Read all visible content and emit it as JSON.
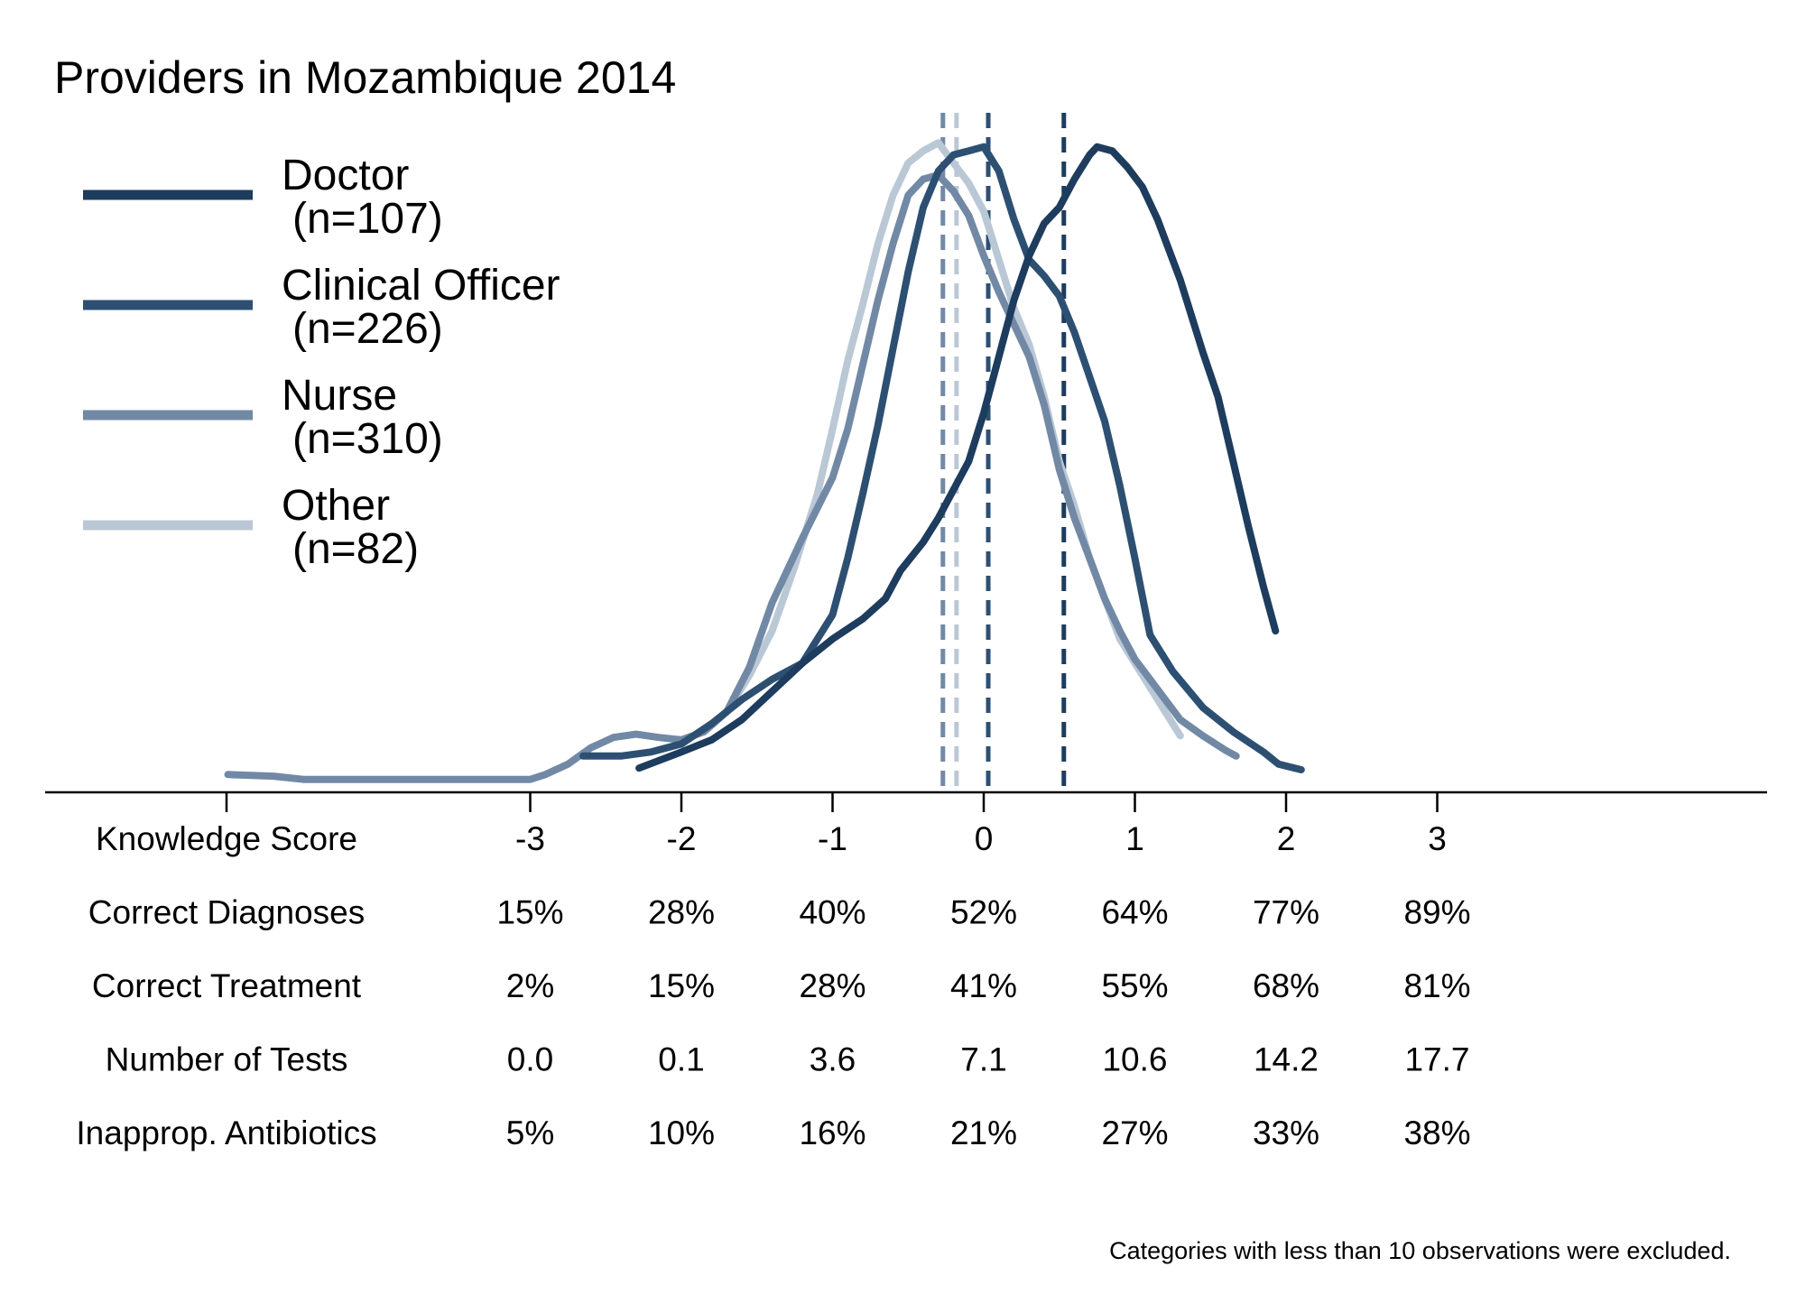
{
  "chart_data": {
    "type": "line",
    "title": "Providers in Mozambique 2014",
    "xlabel": "Knowledge Score",
    "xlim": [
      -5,
      5.3
    ],
    "x_ticks": [
      "-3",
      "-2",
      "-1",
      "0",
      "1",
      "2",
      "3"
    ],
    "x_tick_values": [
      -3,
      -2,
      -1,
      0,
      1,
      2,
      3
    ],
    "ylim": [
      0,
      0.85
    ],
    "grid": false,
    "legend": {
      "placement": "top-left"
    },
    "series": [
      {
        "name": "Doctor",
        "name_line2": "(n=107)",
        "color": "#1d3c5e",
        "mean": 0.53,
        "points": [
          [
            -2.28,
            0.03
          ],
          [
            -2.0,
            0.05
          ],
          [
            -1.8,
            0.065
          ],
          [
            -1.6,
            0.09
          ],
          [
            -1.4,
            0.125
          ],
          [
            -1.2,
            0.16
          ],
          [
            -1.0,
            0.19
          ],
          [
            -0.8,
            0.215
          ],
          [
            -0.65,
            0.24
          ],
          [
            -0.55,
            0.275
          ],
          [
            -0.4,
            0.31
          ],
          [
            -0.3,
            0.34
          ],
          [
            -0.2,
            0.375
          ],
          [
            -0.1,
            0.41
          ],
          [
            0.0,
            0.47
          ],
          [
            0.1,
            0.54
          ],
          [
            0.2,
            0.61
          ],
          [
            0.3,
            0.665
          ],
          [
            0.4,
            0.705
          ],
          [
            0.5,
            0.725
          ],
          [
            0.6,
            0.76
          ],
          [
            0.7,
            0.79
          ],
          [
            0.75,
            0.8
          ],
          [
            0.85,
            0.795
          ],
          [
            0.95,
            0.775
          ],
          [
            1.05,
            0.75
          ],
          [
            1.15,
            0.71
          ],
          [
            1.3,
            0.635
          ],
          [
            1.45,
            0.545
          ],
          [
            1.55,
            0.49
          ],
          [
            1.65,
            0.41
          ],
          [
            1.75,
            0.33
          ],
          [
            1.85,
            0.255
          ],
          [
            1.93,
            0.2
          ]
        ]
      },
      {
        "name": "Clinical Officer",
        "name_line2": "(n=226)",
        "color": "#2d5072",
        "mean": 0.03,
        "points": [
          [
            -2.65,
            0.045
          ],
          [
            -2.4,
            0.045
          ],
          [
            -2.2,
            0.05
          ],
          [
            -2.0,
            0.06
          ],
          [
            -1.8,
            0.085
          ],
          [
            -1.6,
            0.115
          ],
          [
            -1.4,
            0.14
          ],
          [
            -1.2,
            0.16
          ],
          [
            -1.0,
            0.22
          ],
          [
            -0.9,
            0.29
          ],
          [
            -0.8,
            0.37
          ],
          [
            -0.7,
            0.455
          ],
          [
            -0.6,
            0.55
          ],
          [
            -0.5,
            0.645
          ],
          [
            -0.4,
            0.725
          ],
          [
            -0.3,
            0.77
          ],
          [
            -0.2,
            0.79
          ],
          [
            -0.1,
            0.795
          ],
          [
            0.0,
            0.8
          ],
          [
            0.1,
            0.77
          ],
          [
            0.2,
            0.71
          ],
          [
            0.3,
            0.66
          ],
          [
            0.4,
            0.64
          ],
          [
            0.5,
            0.615
          ],
          [
            0.6,
            0.57
          ],
          [
            0.7,
            0.515
          ],
          [
            0.8,
            0.46
          ],
          [
            0.9,
            0.38
          ],
          [
            1.0,
            0.29
          ],
          [
            1.1,
            0.195
          ],
          [
            1.25,
            0.15
          ],
          [
            1.45,
            0.105
          ],
          [
            1.65,
            0.075
          ],
          [
            1.85,
            0.05
          ],
          [
            1.95,
            0.035
          ],
          [
            2.1,
            0.028
          ]
        ]
      },
      {
        "name": "Nurse",
        "name_line2": "(n=310)",
        "color": "#7289a6",
        "mean": -0.27,
        "points": [
          [
            -5.0,
            0.022
          ],
          [
            -4.7,
            0.02
          ],
          [
            -4.5,
            0.016
          ],
          [
            -4.0,
            0.016
          ],
          [
            -3.5,
            0.016
          ],
          [
            -3.2,
            0.016
          ],
          [
            -3.0,
            0.016
          ],
          [
            -2.9,
            0.022
          ],
          [
            -2.75,
            0.035
          ],
          [
            -2.6,
            0.055
          ],
          [
            -2.45,
            0.068
          ],
          [
            -2.3,
            0.072
          ],
          [
            -2.15,
            0.068
          ],
          [
            -2.0,
            0.065
          ],
          [
            -1.85,
            0.075
          ],
          [
            -1.7,
            0.1
          ],
          [
            -1.55,
            0.155
          ],
          [
            -1.4,
            0.235
          ],
          [
            -1.2,
            0.315
          ],
          [
            -1.0,
            0.39
          ],
          [
            -0.9,
            0.45
          ],
          [
            -0.8,
            0.53
          ],
          [
            -0.7,
            0.61
          ],
          [
            -0.6,
            0.68
          ],
          [
            -0.5,
            0.74
          ],
          [
            -0.4,
            0.76
          ],
          [
            -0.3,
            0.765
          ],
          [
            -0.2,
            0.745
          ],
          [
            -0.1,
            0.715
          ],
          [
            0.0,
            0.665
          ],
          [
            0.1,
            0.62
          ],
          [
            0.2,
            0.58
          ],
          [
            0.3,
            0.54
          ],
          [
            0.4,
            0.48
          ],
          [
            0.5,
            0.4
          ],
          [
            0.6,
            0.34
          ],
          [
            0.7,
            0.29
          ],
          [
            0.8,
            0.24
          ],
          [
            0.9,
            0.2
          ],
          [
            1.0,
            0.165
          ],
          [
            1.1,
            0.14
          ],
          [
            1.2,
            0.115
          ],
          [
            1.3,
            0.09
          ],
          [
            1.45,
            0.07
          ],
          [
            1.6,
            0.052
          ],
          [
            1.67,
            0.045
          ]
        ]
      },
      {
        "name": "Other",
        "name_line2": "(n=82)",
        "color": "#bac8d6",
        "mean": -0.18,
        "points": [
          [
            -1.85,
            0.075
          ],
          [
            -1.7,
            0.1
          ],
          [
            -1.55,
            0.145
          ],
          [
            -1.4,
            0.2
          ],
          [
            -1.25,
            0.28
          ],
          [
            -1.1,
            0.37
          ],
          [
            -1.0,
            0.45
          ],
          [
            -0.9,
            0.535
          ],
          [
            -0.8,
            0.605
          ],
          [
            -0.7,
            0.68
          ],
          [
            -0.6,
            0.74
          ],
          [
            -0.5,
            0.78
          ],
          [
            -0.4,
            0.795
          ],
          [
            -0.3,
            0.805
          ],
          [
            -0.2,
            0.78
          ],
          [
            -0.1,
            0.755
          ],
          [
            0.0,
            0.72
          ],
          [
            0.1,
            0.66
          ],
          [
            0.2,
            0.6
          ],
          [
            0.3,
            0.555
          ],
          [
            0.4,
            0.49
          ],
          [
            0.5,
            0.41
          ],
          [
            0.6,
            0.355
          ],
          [
            0.7,
            0.29
          ],
          [
            0.8,
            0.24
          ],
          [
            0.9,
            0.19
          ],
          [
            1.0,
            0.16
          ],
          [
            1.1,
            0.13
          ],
          [
            1.2,
            0.1
          ],
          [
            1.3,
            0.07
          ]
        ]
      }
    ],
    "table": {
      "rows": [
        {
          "label": "Knowledge Score",
          "values": [
            "-3",
            "-2",
            "-1",
            "0",
            "1",
            "2",
            "3"
          ]
        },
        {
          "label": "Correct Diagnoses",
          "values": [
            "15%",
            "28%",
            "40%",
            "52%",
            "64%",
            "77%",
            "89%"
          ]
        },
        {
          "label": "Correct Treatment",
          "values": [
            "2%",
            "15%",
            "28%",
            "41%",
            "55%",
            "68%",
            "81%"
          ]
        },
        {
          "label": "Number of Tests",
          "values": [
            "0.0",
            "0.1",
            "3.6",
            "7.1",
            "10.6",
            "14.2",
            "17.7"
          ]
        },
        {
          "label": "Inapprop. Antibiotics",
          "values": [
            "5%",
            "10%",
            "16%",
            "21%",
            "27%",
            "33%",
            "38%"
          ]
        }
      ]
    },
    "footnote": "Categories with less than 10 observations were excluded."
  }
}
